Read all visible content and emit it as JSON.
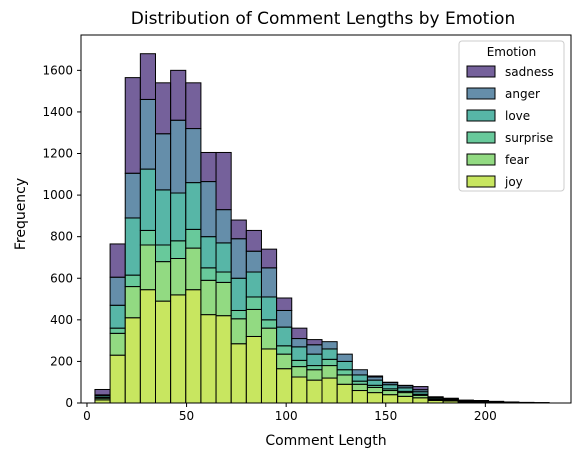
{
  "chart_data": {
    "type": "bar",
    "stacked": true,
    "histogram": true,
    "title": "Distribution of Comment Lengths by Emotion",
    "xlabel": "Comment Length",
    "ylabel": "Frequency",
    "xlim": [
      -3,
      243
    ],
    "ylim": [
      0,
      1770
    ],
    "xticks": [
      0,
      50,
      100,
      150,
      200
    ],
    "yticks": [
      0,
      200,
      400,
      600,
      800,
      1000,
      1200,
      1400,
      1600
    ],
    "grid": false,
    "legend": {
      "title": "Emotion",
      "placement": "top-right"
    },
    "bin_edges": [
      4,
      11.6,
      19.2,
      26.8,
      34.4,
      42,
      49.6,
      57.2,
      64.8,
      72.4,
      80,
      87.6,
      95.2,
      102.8,
      110.4,
      118,
      125.6,
      133.2,
      140.8,
      148.4,
      156,
      163.6,
      171.2,
      178.8,
      186.4,
      194,
      201.6,
      209.2,
      216.8,
      224.4,
      232
    ],
    "stack_order_bottom_to_top": [
      "joy",
      "fear",
      "surprise",
      "love",
      "anger",
      "sadness"
    ],
    "series": [
      {
        "name": "joy",
        "color": "#b5de2b",
        "values": [
          15,
          230,
          410,
          545,
          490,
          520,
          545,
          425,
          420,
          285,
          320,
          260,
          165,
          125,
          110,
          120,
          90,
          60,
          50,
          40,
          32,
          25,
          12,
          10,
          5,
          5,
          2,
          2,
          1,
          1
        ]
      },
      {
        "name": "fear",
        "color": "#6ece58",
        "values": [
          8,
          105,
          150,
          215,
          190,
          175,
          200,
          165,
          160,
          120,
          130,
          100,
          70,
          50,
          50,
          60,
          45,
          30,
          25,
          20,
          18,
          12,
          5,
          4,
          2,
          1,
          1,
          1,
          0,
          0
        ]
      },
      {
        "name": "surprise",
        "color": "#35b779",
        "values": [
          4,
          25,
          55,
          70,
          80,
          85,
          90,
          60,
          50,
          40,
          60,
          40,
          40,
          30,
          20,
          30,
          25,
          15,
          10,
          8,
          6,
          5,
          2,
          1,
          1,
          1,
          0,
          0,
          0,
          0
        ]
      },
      {
        "name": "love",
        "color": "#1f9e89",
        "values": [
          8,
          110,
          275,
          295,
          265,
          230,
          225,
          150,
          140,
          155,
          120,
          110,
          90,
          65,
          55,
          50,
          40,
          30,
          25,
          20,
          17,
          12,
          6,
          4,
          2,
          2,
          2,
          1,
          1,
          0
        ]
      },
      {
        "name": "anger",
        "color": "#31688e",
        "values": [
          4,
          135,
          215,
          335,
          270,
          350,
          260,
          265,
          160,
          190,
          100,
          140,
          80,
          40,
          45,
          35,
          35,
          25,
          15,
          10,
          10,
          10,
          3,
          2,
          2,
          1,
          1,
          0,
          0,
          0
        ]
      },
      {
        "name": "sadness",
        "color": "#472c7a",
        "values": [
          26,
          160,
          460,
          220,
          245,
          240,
          220,
          140,
          275,
          90,
          100,
          90,
          60,
          50,
          25,
          0,
          0,
          0,
          5,
          2,
          2,
          15,
          2,
          2,
          2,
          2,
          2,
          1,
          1,
          1
        ]
      }
    ]
  }
}
